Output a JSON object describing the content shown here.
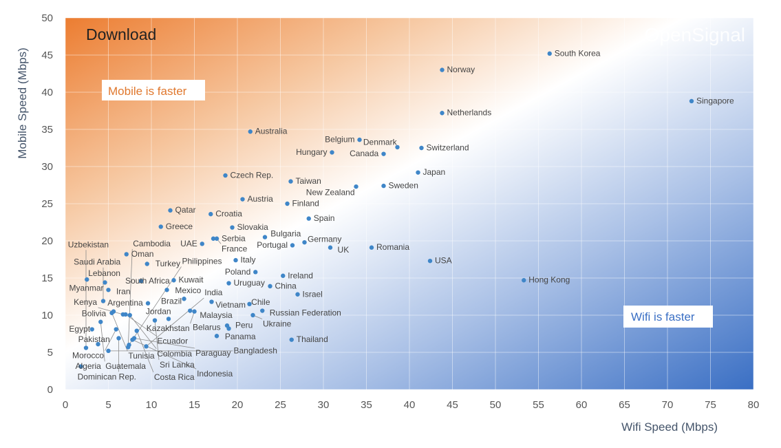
{
  "chart_data": {
    "type": "scatter",
    "title": "Download",
    "brand": "OpenSignal",
    "xlabel": "Wifi Speed (Mbps)",
    "ylabel": "Mobile Speed (Mbps)",
    "xlim": [
      0,
      80
    ],
    "ylim": [
      0,
      50
    ],
    "xticks": [
      0,
      5,
      10,
      15,
      20,
      25,
      30,
      35,
      40,
      45,
      50,
      55,
      60,
      65,
      70,
      75,
      80
    ],
    "yticks": [
      0,
      5,
      10,
      15,
      20,
      25,
      30,
      35,
      40,
      45,
      50
    ],
    "grid": true,
    "annotations": {
      "mobile_faster": "Mobile is faster",
      "wifi_faster": "Wifi is faster"
    },
    "colors": {
      "point": "#3f86c8",
      "mobile_region": "#ec7d31",
      "wifi_region": "#3a6fc4"
    },
    "points": [
      {
        "name": "South Korea",
        "x": 56.3,
        "y": 45.2
      },
      {
        "name": "Norway",
        "x": 43.8,
        "y": 43.0
      },
      {
        "name": "Singapore",
        "x": 72.8,
        "y": 38.8
      },
      {
        "name": "Netherlands",
        "x": 43.8,
        "y": 37.2
      },
      {
        "name": "Australia",
        "x": 21.5,
        "y": 34.7
      },
      {
        "name": "Belgium",
        "x": 34.2,
        "y": 33.6
      },
      {
        "name": "Denmark",
        "x": 38.6,
        "y": 32.6
      },
      {
        "name": "Switzerland",
        "x": 41.4,
        "y": 32.5
      },
      {
        "name": "Hungary",
        "x": 31.0,
        "y": 31.9
      },
      {
        "name": "Canada",
        "x": 37.0,
        "y": 31.7
      },
      {
        "name": "Japan",
        "x": 41.0,
        "y": 29.2
      },
      {
        "name": "Czech Rep.",
        "x": 18.6,
        "y": 28.8
      },
      {
        "name": "Taiwan",
        "x": 26.2,
        "y": 28.0
      },
      {
        "name": "New Zealand",
        "x": 33.8,
        "y": 27.3
      },
      {
        "name": "Sweden",
        "x": 37.0,
        "y": 27.4
      },
      {
        "name": "Austria",
        "x": 20.6,
        "y": 25.6
      },
      {
        "name": "Finland",
        "x": 25.8,
        "y": 25.0
      },
      {
        "name": "Qatar",
        "x": 12.2,
        "y": 24.1
      },
      {
        "name": "Croatia",
        "x": 16.9,
        "y": 23.6
      },
      {
        "name": "Spain",
        "x": 28.3,
        "y": 23.0
      },
      {
        "name": "Greece",
        "x": 11.1,
        "y": 21.9
      },
      {
        "name": "Slovakia",
        "x": 19.4,
        "y": 21.8
      },
      {
        "name": "Serbia",
        "x": 17.2,
        "y": 20.3
      },
      {
        "name": "France",
        "x": 17.6,
        "y": 20.3
      },
      {
        "name": "Bulgaria",
        "x": 23.2,
        "y": 20.5
      },
      {
        "name": "Germany",
        "x": 27.8,
        "y": 19.8
      },
      {
        "name": "Portugal",
        "x": 26.4,
        "y": 19.4
      },
      {
        "name": "UK",
        "x": 30.8,
        "y": 19.1
      },
      {
        "name": "Romania",
        "x": 35.6,
        "y": 19.1
      },
      {
        "name": "UAE",
        "x": 15.9,
        "y": 19.6
      },
      {
        "name": "Oman",
        "x": 7.1,
        "y": 18.2
      },
      {
        "name": "Turkey",
        "x": 9.5,
        "y": 16.9
      },
      {
        "name": "Italy",
        "x": 19.8,
        "y": 17.4
      },
      {
        "name": "USA",
        "x": 42.4,
        "y": 17.3
      },
      {
        "name": "Poland",
        "x": 22.1,
        "y": 15.8
      },
      {
        "name": "Ireland",
        "x": 25.3,
        "y": 15.3
      },
      {
        "name": "Lebanon",
        "x": 2.5,
        "y": 14.8
      },
      {
        "name": "Myanmar",
        "x": 4.6,
        "y": 14.4
      },
      {
        "name": "South Africa",
        "x": 8.8,
        "y": 14.6
      },
      {
        "name": "Kuwait",
        "x": 12.6,
        "y": 14.7
      },
      {
        "name": "Uruguay",
        "x": 19.0,
        "y": 14.3
      },
      {
        "name": "Hong Kong",
        "x": 53.3,
        "y": 14.7
      },
      {
        "name": "China",
        "x": 23.8,
        "y": 13.9
      },
      {
        "name": "Iran",
        "x": 5.0,
        "y": 13.4
      },
      {
        "name": "Mexico",
        "x": 11.8,
        "y": 13.4
      },
      {
        "name": "Israel",
        "x": 27.0,
        "y": 12.8
      },
      {
        "name": "Brazil",
        "x": 13.8,
        "y": 12.2
      },
      {
        "name": "Vietnam",
        "x": 17.0,
        "y": 11.8
      },
      {
        "name": "Saudi Arabia",
        "x": 4.4,
        "y": 11.9
      },
      {
        "name": "Chile",
        "x": 21.4,
        "y": 11.5
      },
      {
        "name": "Argentina",
        "x": 9.6,
        "y": 11.6
      },
      {
        "name": "Malaysia",
        "x": 14.5,
        "y": 10.6
      },
      {
        "name": "Kazakhstan",
        "x": 15.0,
        "y": 10.5
      },
      {
        "name": "Russian Federation",
        "x": 22.9,
        "y": 10.6
      },
      {
        "name": "Ukraine",
        "x": 21.8,
        "y": 10.0
      },
      {
        "name": "Bolivia",
        "x": 5.6,
        "y": 10.5
      },
      {
        "name": "Kenya",
        "x": 6.7,
        "y": 10.1
      },
      {
        "name": "Tunisia",
        "x": 5.4,
        "y": 10.3
      },
      {
        "name": "Ecuador",
        "x": 7.0,
        "y": 10.1
      },
      {
        "name": "Colombia",
        "x": 7.5,
        "y": 10.0
      },
      {
        "name": "Jordan",
        "x": 12.0,
        "y": 9.5
      },
      {
        "name": "Sri Lanka",
        "x": 10.4,
        "y": 9.3
      },
      {
        "name": "Guatemala",
        "x": 4.1,
        "y": 9.1
      },
      {
        "name": "Peru",
        "x": 18.8,
        "y": 8.6
      },
      {
        "name": "Belarus",
        "x": 19.0,
        "y": 8.2
      },
      {
        "name": "Egypt",
        "x": 3.1,
        "y": 8.1
      },
      {
        "name": "Morocco",
        "x": 5.9,
        "y": 8.1
      },
      {
        "name": "Costa Rica",
        "x": 8.3,
        "y": 7.9
      },
      {
        "name": "Panama",
        "x": 17.6,
        "y": 7.2
      },
      {
        "name": "Thailand",
        "x": 26.3,
        "y": 6.7
      },
      {
        "name": "Dominican Rep.",
        "x": 6.2,
        "y": 6.9
      },
      {
        "name": "Paraguay",
        "x": 8.0,
        "y": 6.9
      },
      {
        "name": "Indonesia",
        "x": 7.8,
        "y": 6.7
      },
      {
        "name": "Pakistan",
        "x": 3.8,
        "y": 6.1
      },
      {
        "name": "Philippines",
        "x": 7.4,
        "y": 6.0
      },
      {
        "name": "Cambodia",
        "x": 7.3,
        "y": 5.7
      },
      {
        "name": "India",
        "x": 9.4,
        "y": 5.8
      },
      {
        "name": "Uzbekistan",
        "x": 2.4,
        "y": 5.6
      },
      {
        "name": "Bangladesh",
        "x": 5.0,
        "y": 5.2
      },
      {
        "name": "Algeria",
        "x": 1.8,
        "y": 3.1
      }
    ]
  }
}
